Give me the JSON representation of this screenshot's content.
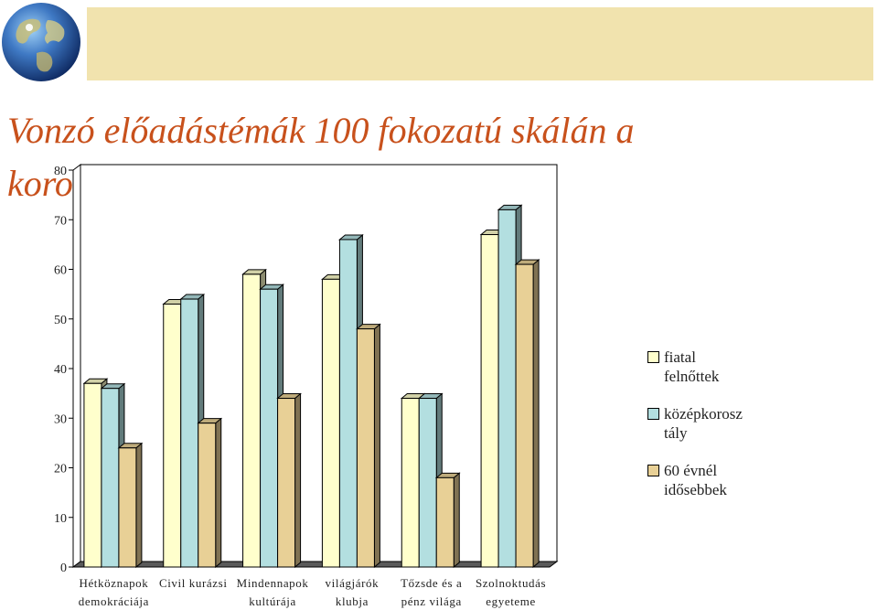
{
  "slide": {
    "title": "Vonzó előadástémák 100 fokozatú skálán a korosztályok tükrében"
  },
  "colors": {
    "title": "#c8511c",
    "header_band": "#f1e3ae",
    "series": [
      "#ffffcc",
      "#b3dfe0",
      "#e8d096"
    ]
  },
  "icons": {
    "logo": "globe-icon"
  },
  "chart_data": {
    "type": "bar",
    "categories": [
      [
        "Hétköznapok",
        "demokráciája"
      ],
      [
        "Civil kurázsi"
      ],
      [
        "Mindennapok",
        "kultúrája"
      ],
      [
        "világjárók",
        "klubja"
      ],
      [
        "Tőzsde és a",
        "pénz világa"
      ],
      [
        "Szolnoktudás",
        "egyeteme"
      ]
    ],
    "series": [
      {
        "name": "fiatal felnőttek",
        "legend_lines": [
          "fiatal",
          "felnőttek"
        ],
        "values": [
          37,
          53,
          59,
          58,
          34,
          67
        ]
      },
      {
        "name": "középkorosztály",
        "legend_lines": [
          "középkorosz",
          "tály"
        ],
        "values": [
          36,
          54,
          56,
          66,
          34,
          72
        ]
      },
      {
        "name": "60 évnél idősebbek",
        "legend_lines": [
          "60 évnél",
          "idősebbek"
        ],
        "values": [
          24,
          29,
          34,
          48,
          18,
          61
        ]
      }
    ],
    "ylim": [
      0,
      80
    ],
    "yticks": [
      0,
      10,
      20,
      30,
      40,
      50,
      60,
      70,
      80
    ],
    "grid": false,
    "legend": "right",
    "title": "",
    "xlabel": "",
    "ylabel": ""
  }
}
